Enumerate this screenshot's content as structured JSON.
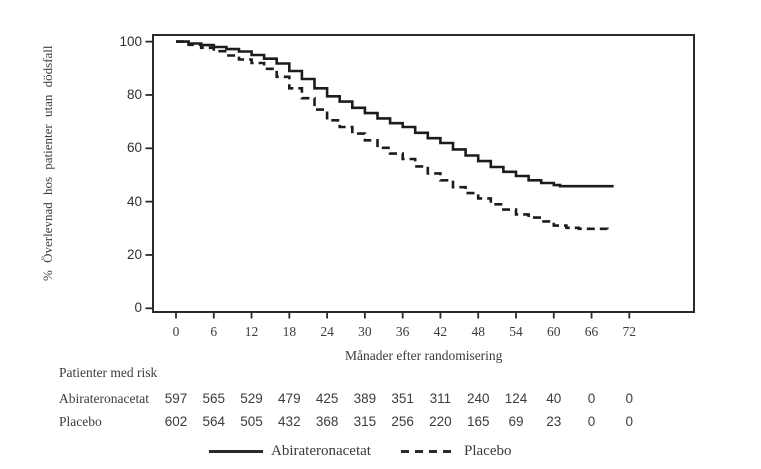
{
  "chart_data": {
    "type": "line",
    "subtype": "kaplan-meier-step",
    "title": "",
    "xlabel": "Månader efter randomisering",
    "ylabel": "% Överlevnad hos patienter utan dödsfall",
    "xlim": [
      0,
      72
    ],
    "ylim": [
      0,
      100
    ],
    "x_ticks": [
      0,
      6,
      12,
      18,
      24,
      30,
      36,
      42,
      48,
      54,
      60,
      66,
      72
    ],
    "y_ticks": [
      0,
      20,
      40,
      60,
      80,
      100
    ],
    "grid": "off",
    "legend_position": "bottom",
    "line_color": "#1c1c1c",
    "series": [
      {
        "name": "Abirateronacetat",
        "style": "solid",
        "points": [
          [
            0,
            100
          ],
          [
            2,
            99.3
          ],
          [
            4,
            98.7
          ],
          [
            6,
            98
          ],
          [
            8,
            97.2
          ],
          [
            10,
            96.3
          ],
          [
            12,
            95
          ],
          [
            14,
            93.6
          ],
          [
            16,
            91.8
          ],
          [
            18,
            89
          ],
          [
            20,
            86
          ],
          [
            22,
            82.5
          ],
          [
            24,
            79.5
          ],
          [
            26,
            77.5
          ],
          [
            28,
            75.2
          ],
          [
            30,
            73.2
          ],
          [
            32,
            71.2
          ],
          [
            34,
            69.4
          ],
          [
            36,
            68
          ],
          [
            38,
            65.8
          ],
          [
            40,
            63.8
          ],
          [
            42,
            62
          ],
          [
            44,
            59.6
          ],
          [
            46,
            57.3
          ],
          [
            48,
            55.2
          ],
          [
            50,
            53
          ],
          [
            52,
            51.2
          ],
          [
            54,
            49.6
          ],
          [
            56,
            48
          ],
          [
            58,
            47
          ],
          [
            60,
            46.2
          ],
          [
            61,
            45.8
          ],
          [
            69.5,
            45.8
          ]
        ]
      },
      {
        "name": "Placebo",
        "style": "dashed",
        "points": [
          [
            0,
            100
          ],
          [
            2,
            98.8
          ],
          [
            4,
            97.7
          ],
          [
            6,
            96.4
          ],
          [
            8,
            94.8
          ],
          [
            10,
            93.3
          ],
          [
            12,
            92
          ],
          [
            14,
            89.8
          ],
          [
            16,
            86.8
          ],
          [
            18,
            82.5
          ],
          [
            20,
            78.8
          ],
          [
            22,
            74.5
          ],
          [
            24,
            70.5
          ],
          [
            26,
            68
          ],
          [
            28,
            65.5
          ],
          [
            30,
            63
          ],
          [
            32,
            60.2
          ],
          [
            34,
            58
          ],
          [
            36,
            56
          ],
          [
            38,
            53.2
          ],
          [
            40,
            50.6
          ],
          [
            42,
            48
          ],
          [
            44,
            45.4
          ],
          [
            46,
            43.2
          ],
          [
            48,
            41.2
          ],
          [
            50,
            39
          ],
          [
            52,
            37
          ],
          [
            54,
            35.2
          ],
          [
            56,
            34
          ],
          [
            58,
            32.6
          ],
          [
            60,
            31
          ],
          [
            62,
            30.2
          ],
          [
            64,
            29.8
          ],
          [
            68.5,
            29.6
          ]
        ]
      }
    ],
    "risk_table": {
      "title": "Patienter med risk",
      "time_points": [
        0,
        6,
        12,
        18,
        24,
        30,
        36,
        42,
        48,
        54,
        60,
        66,
        72
      ],
      "rows": [
        {
          "name": "Abirateronacetat",
          "counts": [
            597,
            565,
            529,
            479,
            425,
            389,
            351,
            311,
            240,
            124,
            40,
            0,
            0
          ]
        },
        {
          "name": "Placebo",
          "counts": [
            602,
            564,
            505,
            432,
            368,
            315,
            256,
            220,
            165,
            69,
            23,
            0,
            0
          ]
        }
      ]
    },
    "legend": [
      {
        "label": "Abirateronacetat",
        "style": "solid"
      },
      {
        "label": "Placebo",
        "style": "dashed"
      }
    ]
  }
}
